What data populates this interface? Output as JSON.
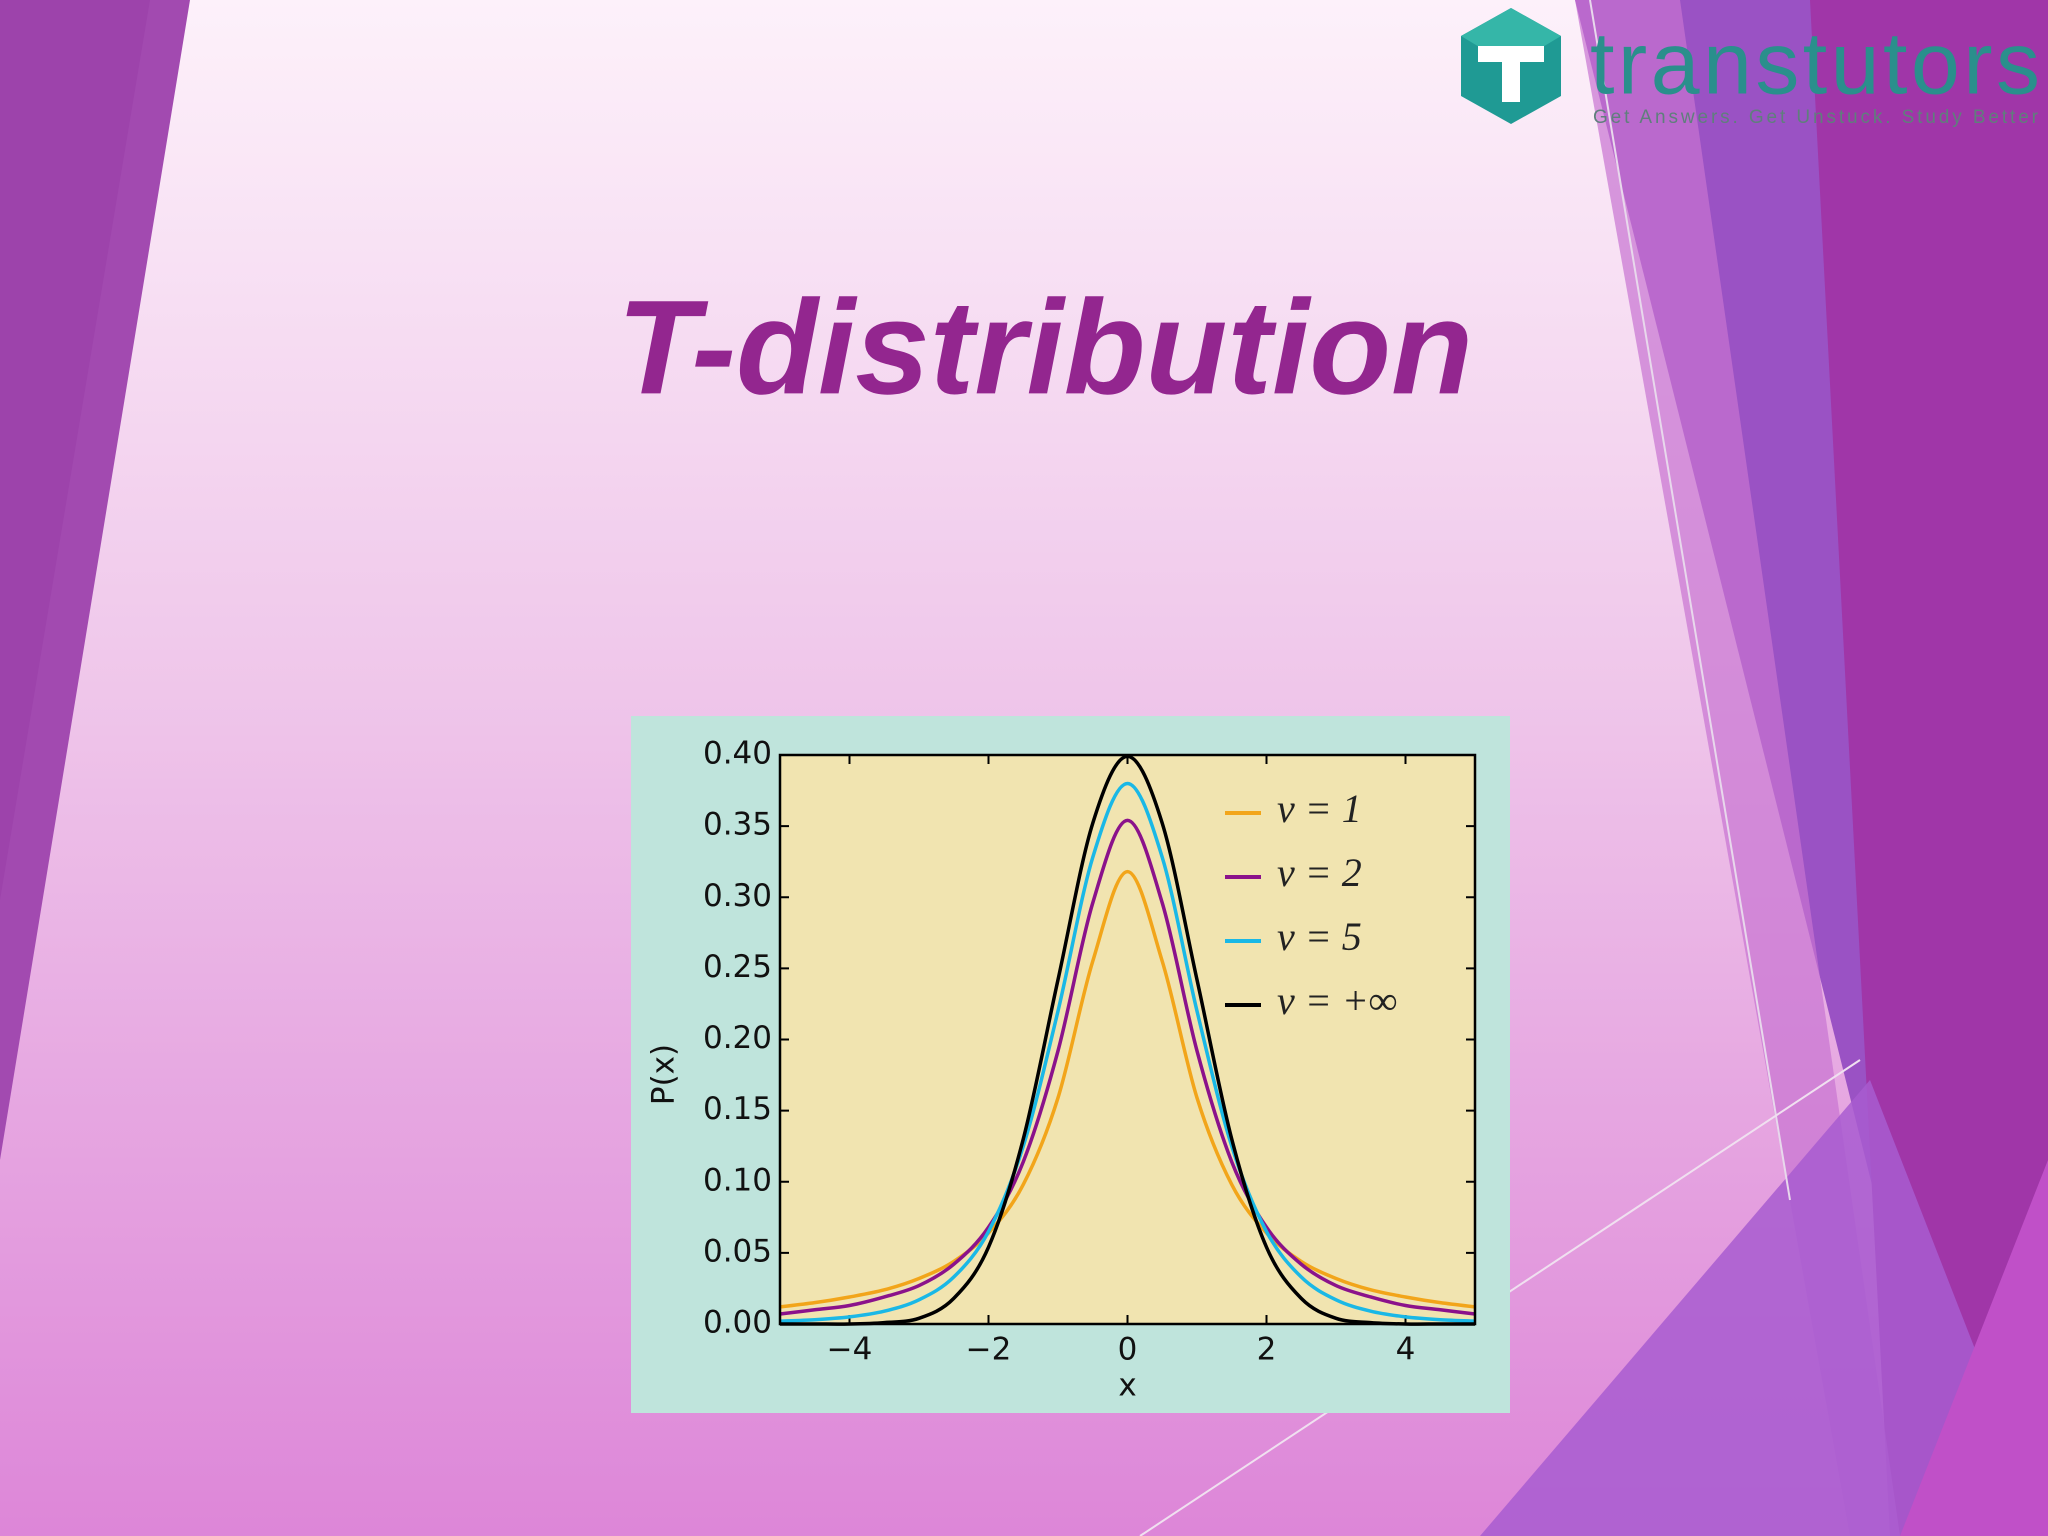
{
  "slide": {
    "title": "T-distribution",
    "logo": {
      "name": "transtutors",
      "tagline": "Get Answers. Get Unstuck. Study Better"
    }
  },
  "chart_data": {
    "type": "line",
    "x_label": "x",
    "y_label": "P(x)",
    "x": [
      -5,
      -4.5,
      -4,
      -3.5,
      -3,
      -2.5,
      -2,
      -1.5,
      -1,
      -0.5,
      0,
      0.5,
      1,
      1.5,
      2,
      2.5,
      3,
      3.5,
      4,
      4.5,
      5
    ],
    "series": [
      {
        "name": "ν = 1",
        "color": "#f2a51a",
        "values": [
          0.012,
          0.015,
          0.019,
          0.024,
          0.032,
          0.044,
          0.064,
          0.098,
          0.159,
          0.255,
          0.318,
          0.255,
          0.159,
          0.098,
          0.064,
          0.044,
          0.032,
          0.024,
          0.019,
          0.015,
          0.012
        ]
      },
      {
        "name": "ν = 2",
        "color": "#8b128b",
        "values": [
          0.007,
          0.01,
          0.013,
          0.019,
          0.027,
          0.042,
          0.068,
          0.114,
          0.192,
          0.296,
          0.354,
          0.296,
          0.192,
          0.114,
          0.068,
          0.042,
          0.027,
          0.019,
          0.013,
          0.01,
          0.007
        ]
      },
      {
        "name": "ν = 5",
        "color": "#1ab8e6",
        "values": [
          0.002,
          0.003,
          0.005,
          0.009,
          0.017,
          0.033,
          0.065,
          0.125,
          0.22,
          0.328,
          0.38,
          0.328,
          0.22,
          0.125,
          0.065,
          0.033,
          0.017,
          0.009,
          0.005,
          0.003,
          0.002
        ]
      },
      {
        "name": "ν = +∞",
        "color": "#000000",
        "values": [
          0,
          0,
          0,
          0.001,
          0.004,
          0.018,
          0.054,
          0.13,
          0.242,
          0.352,
          0.399,
          0.352,
          0.242,
          0.13,
          0.054,
          0.018,
          0.004,
          0.001,
          0,
          0,
          0
        ]
      }
    ],
    "xlim": [
      -5,
      5
    ],
    "xticks": [
      {
        "value": -4,
        "label": "−4"
      },
      {
        "value": -2,
        "label": "−2"
      },
      0,
      2,
      4
    ],
    "ylim": [
      0,
      0.4
    ],
    "yticks": [
      {
        "value": 0,
        "label": "0.00"
      },
      {
        "value": 0.05,
        "label": "0.05"
      },
      {
        "value": 0.1,
        "label": "0.10"
      },
      {
        "value": 0.15,
        "label": "0.15"
      },
      {
        "value": 0.2,
        "label": "0.20"
      },
      {
        "value": 0.25,
        "label": "0.25"
      },
      {
        "value": 0.3,
        "label": "0.30"
      },
      {
        "value": 0.35,
        "label": "0.35"
      },
      {
        "value": 0.4,
        "label": "0.40"
      }
    ],
    "legend": "upper right",
    "plot_background": "#f1e4b0",
    "background": "#bfe4dc"
  }
}
